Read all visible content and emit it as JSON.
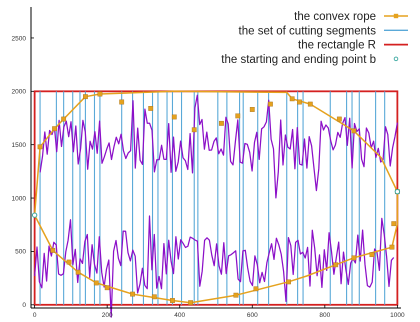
{
  "chart_data": {
    "type": "line",
    "title": "",
    "xlabel": "",
    "ylabel": "",
    "xlim": [
      -10,
      1010
    ],
    "ylim": [
      -30,
      2790
    ],
    "grid": false,
    "legend_position": "top-right",
    "x_ticks": [
      0,
      200,
      400,
      600,
      800,
      1000
    ],
    "y_ticks": [
      0,
      500,
      1000,
      1500,
      2000,
      2500
    ],
    "colors": {
      "rope": "#e5a21e",
      "cutting_segments": "#5aa9d8",
      "rectangle": "#d42020",
      "start_end": "#3aa8a0",
      "data_path": "#8c10c8"
    },
    "series": [
      {
        "name": "the convex rope",
        "marker": "square",
        "points": [
          [
            0,
            840
          ],
          [
            15,
            1480
          ],
          [
            55,
            1650
          ],
          [
            80,
            1740
          ],
          [
            140,
            1950
          ],
          [
            180,
            1975
          ],
          [
            385,
            2000
          ],
          [
            695,
            1990
          ],
          [
            710,
            1930
          ],
          [
            760,
            1880
          ],
          [
            880,
            1630
          ],
          [
            955,
            1380
          ],
          [
            1000,
            1060
          ],
          [
            1000,
            760
          ],
          [
            985,
            540
          ],
          [
            880,
            440
          ],
          [
            830,
            375
          ],
          [
            750,
            270
          ],
          [
            700,
            215
          ],
          [
            555,
            90
          ],
          [
            430,
            20
          ],
          [
            380,
            40
          ],
          [
            270,
            100
          ],
          [
            170,
            205
          ],
          [
            120,
            305
          ],
          [
            50,
            510
          ],
          [
            0,
            840
          ]
        ],
        "bend_points": [
          [
            15,
            1480
          ],
          [
            55,
            1650
          ],
          [
            80,
            1740
          ],
          [
            140,
            1950
          ],
          [
            180,
            1975
          ],
          [
            240,
            1900
          ],
          [
            320,
            1840
          ],
          [
            385,
            1760
          ],
          [
            440,
            1640
          ],
          [
            515,
            1700
          ],
          [
            560,
            1770
          ],
          [
            600,
            1830
          ],
          [
            650,
            1880
          ],
          [
            710,
            1930
          ],
          [
            730,
            1900
          ],
          [
            760,
            1880
          ],
          [
            840,
            1740
          ],
          [
            880,
            1630
          ],
          [
            1000,
            1060
          ],
          [
            990,
            760
          ],
          [
            985,
            540
          ],
          [
            930,
            470
          ],
          [
            880,
            440
          ],
          [
            830,
            375
          ],
          [
            700,
            215
          ],
          [
            610,
            150
          ],
          [
            555,
            90
          ],
          [
            430,
            20
          ],
          [
            380,
            40
          ],
          [
            330,
            75
          ],
          [
            270,
            100
          ],
          [
            200,
            160
          ],
          [
            170,
            205
          ],
          [
            120,
            305
          ],
          [
            95,
            400
          ],
          [
            50,
            510
          ]
        ]
      },
      {
        "name": "the set of cutting segments",
        "x_positions": [
          15,
          60,
          80,
          105,
          125,
          140,
          165,
          180,
          240,
          270,
          300,
          325,
          340,
          365,
          380,
          405,
          440,
          450,
          505,
          530,
          565,
          575,
          615,
          645,
          695,
          725,
          740,
          815,
          860,
          875,
          895,
          940,
          965
        ]
      },
      {
        "name": "the rectangle R",
        "x_range": [
          0,
          1000
        ],
        "y_range": [
          0,
          2000
        ]
      },
      {
        "name": "the starting and ending point b",
        "points": [
          [
            0,
            840
          ],
          [
            1000,
            1060
          ]
        ]
      }
    ]
  }
}
